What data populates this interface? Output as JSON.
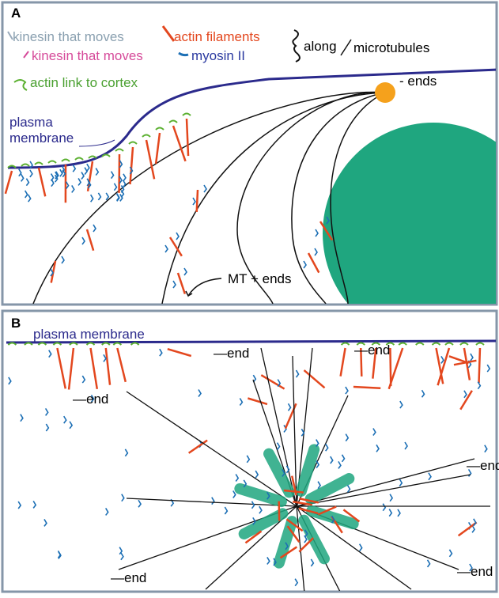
{
  "panel_a": {
    "label": "A",
    "legend": {
      "kinesin_1": "kinesin that moves",
      "actin": "actin filaments",
      "kinesin_2": "kinesin that moves",
      "myosin": "myosin II",
      "along": "along",
      "microtubules": "microtubules",
      "actin_link": "actin link to cortex"
    },
    "minus_ends": "- ends",
    "membrane_label": [
      "plasma",
      "membrane"
    ],
    "plus_ends": "MT + ends"
  },
  "panel_b": {
    "label": "B",
    "membrane_label": "plasma membrane",
    "end_labels": [
      "—end",
      "—end",
      "—end",
      "—end",
      "—end",
      "—end"
    ]
  }
}
